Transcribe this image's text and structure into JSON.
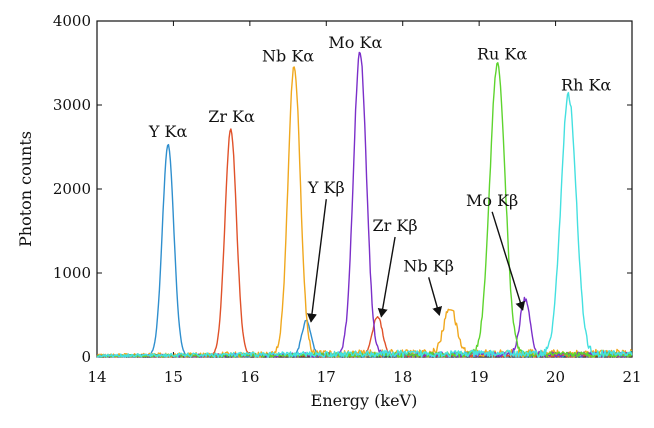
{
  "chart_data": {
    "type": "line",
    "title": "",
    "xlabel": "Energy (keV)",
    "ylabel": "Photon counts",
    "xlim": [
      14,
      21
    ],
    "ylim": [
      0,
      4000
    ],
    "xticks": [
      "14",
      "15",
      "16",
      "17",
      "18",
      "19",
      "20",
      "21"
    ],
    "yticks": [
      "0",
      "1000",
      "2000",
      "3000",
      "4000"
    ],
    "grid": false,
    "legend": "none",
    "series": [
      {
        "name": "Y",
        "color": "#2f8fce",
        "peaks": [
          {
            "x": 14.93,
            "y": 2520,
            "w": 0.075
          },
          {
            "x": 16.74,
            "y": 420,
            "w": 0.06
          }
        ],
        "noise": 35
      },
      {
        "name": "Zr",
        "color": "#e0522a",
        "peaks": [
          {
            "x": 15.75,
            "y": 2700,
            "w": 0.075
          },
          {
            "x": 17.67,
            "y": 470,
            "w": 0.065
          }
        ],
        "noise": 35
      },
      {
        "name": "Nb",
        "color": "#f0a81e",
        "peaks": [
          {
            "x": 16.58,
            "y": 3430,
            "w": 0.08
          },
          {
            "x": 18.62,
            "y": 550,
            "w": 0.08
          }
        ],
        "noise": 90
      },
      {
        "name": "Mo",
        "color": "#7b2fc9",
        "peaks": [
          {
            "x": 17.44,
            "y": 3600,
            "w": 0.085
          },
          {
            "x": 19.6,
            "y": 660,
            "w": 0.065
          }
        ],
        "noise": 60
      },
      {
        "name": "Ru",
        "color": "#5ed42e",
        "peaks": [
          {
            "x": 19.24,
            "y": 3460,
            "w": 0.1
          }
        ],
        "noise": 60
      },
      {
        "name": "Rh",
        "color": "#44e0e0",
        "peaks": [
          {
            "x": 20.17,
            "y": 3080,
            "w": 0.1
          }
        ],
        "noise": 80
      }
    ],
    "annotations": [
      {
        "text": "Y Kα",
        "x": 14.93,
        "y": 2620
      },
      {
        "text": "Zr Kα",
        "x": 15.76,
        "y": 2800
      },
      {
        "text": "Nb Kα",
        "x": 16.5,
        "y": 3520
      },
      {
        "text": "Mo Kα",
        "x": 17.38,
        "y": 3680
      },
      {
        "text": "Ru Kα",
        "x": 19.3,
        "y": 3540
      },
      {
        "text": "Rh Kα",
        "x": 20.4,
        "y": 3170
      },
      {
        "text": "Y Kβ",
        "x": 17.0,
        "y": 1950,
        "arrow_to": [
          16.8,
          420
        ]
      },
      {
        "text": "Zr Kβ",
        "x": 17.9,
        "y": 1500,
        "arrow_to": [
          17.72,
          480
        ]
      },
      {
        "text": "Nb Kβ",
        "x": 18.34,
        "y": 1020,
        "arrow_to": [
          18.48,
          500
        ]
      },
      {
        "text": "Mo Kβ",
        "x": 19.17,
        "y": 1800,
        "arrow_to": [
          19.57,
          560
        ]
      }
    ]
  }
}
